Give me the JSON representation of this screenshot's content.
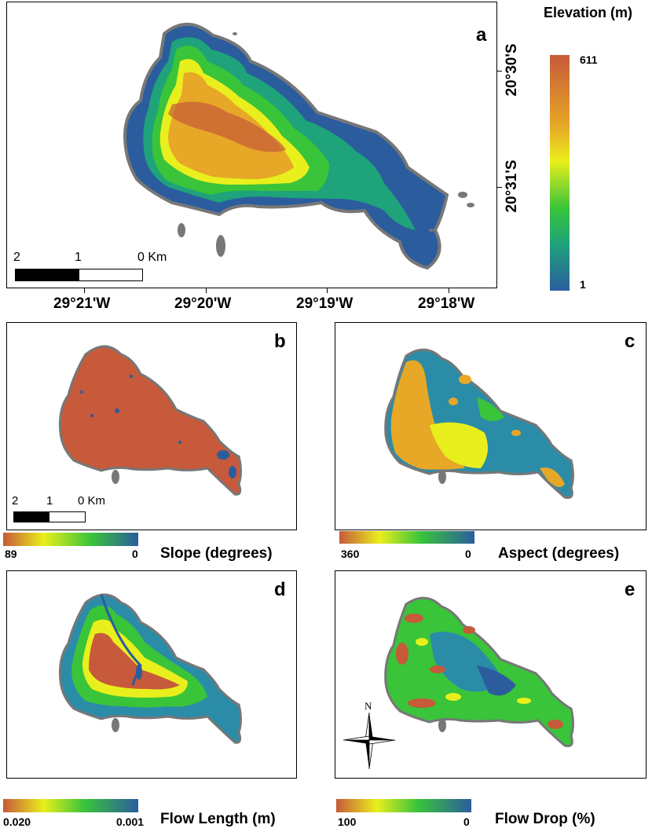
{
  "panel_a": {
    "label": "a",
    "legend_title": "Elevation (m)",
    "legend_max": "611",
    "legend_min": "1",
    "lon_ticks": [
      "29°21'W",
      "29°20'W",
      "29°19'W",
      "29°18'W"
    ],
    "lat_ticks": [
      "20°30'S",
      "20°31'S"
    ],
    "scale": [
      "2",
      "1",
      "0 Km"
    ],
    "ramp": [
      "#2b5d9e",
      "#1ea37a",
      "#39c43a",
      "#e9ef1c",
      "#e7a727",
      "#c65a3a"
    ]
  },
  "panel_b": {
    "label": "b",
    "legend_title": "Slope (degrees)",
    "legend_max": "89",
    "legend_min": "0",
    "scale": [
      "2",
      "1",
      "0 Km"
    ]
  },
  "panel_c": {
    "label": "c",
    "legend_title": "Aspect (degrees)",
    "legend_max": "360",
    "legend_min": "0"
  },
  "panel_d": {
    "label": "d",
    "legend_title": "Flow Length (m)",
    "legend_max": "0.020",
    "legend_min": "0.001"
  },
  "panel_e": {
    "label": "e",
    "legend_title": "Flow Drop (%)",
    "legend_max": "100",
    "legend_min": "0",
    "north": "N"
  }
}
